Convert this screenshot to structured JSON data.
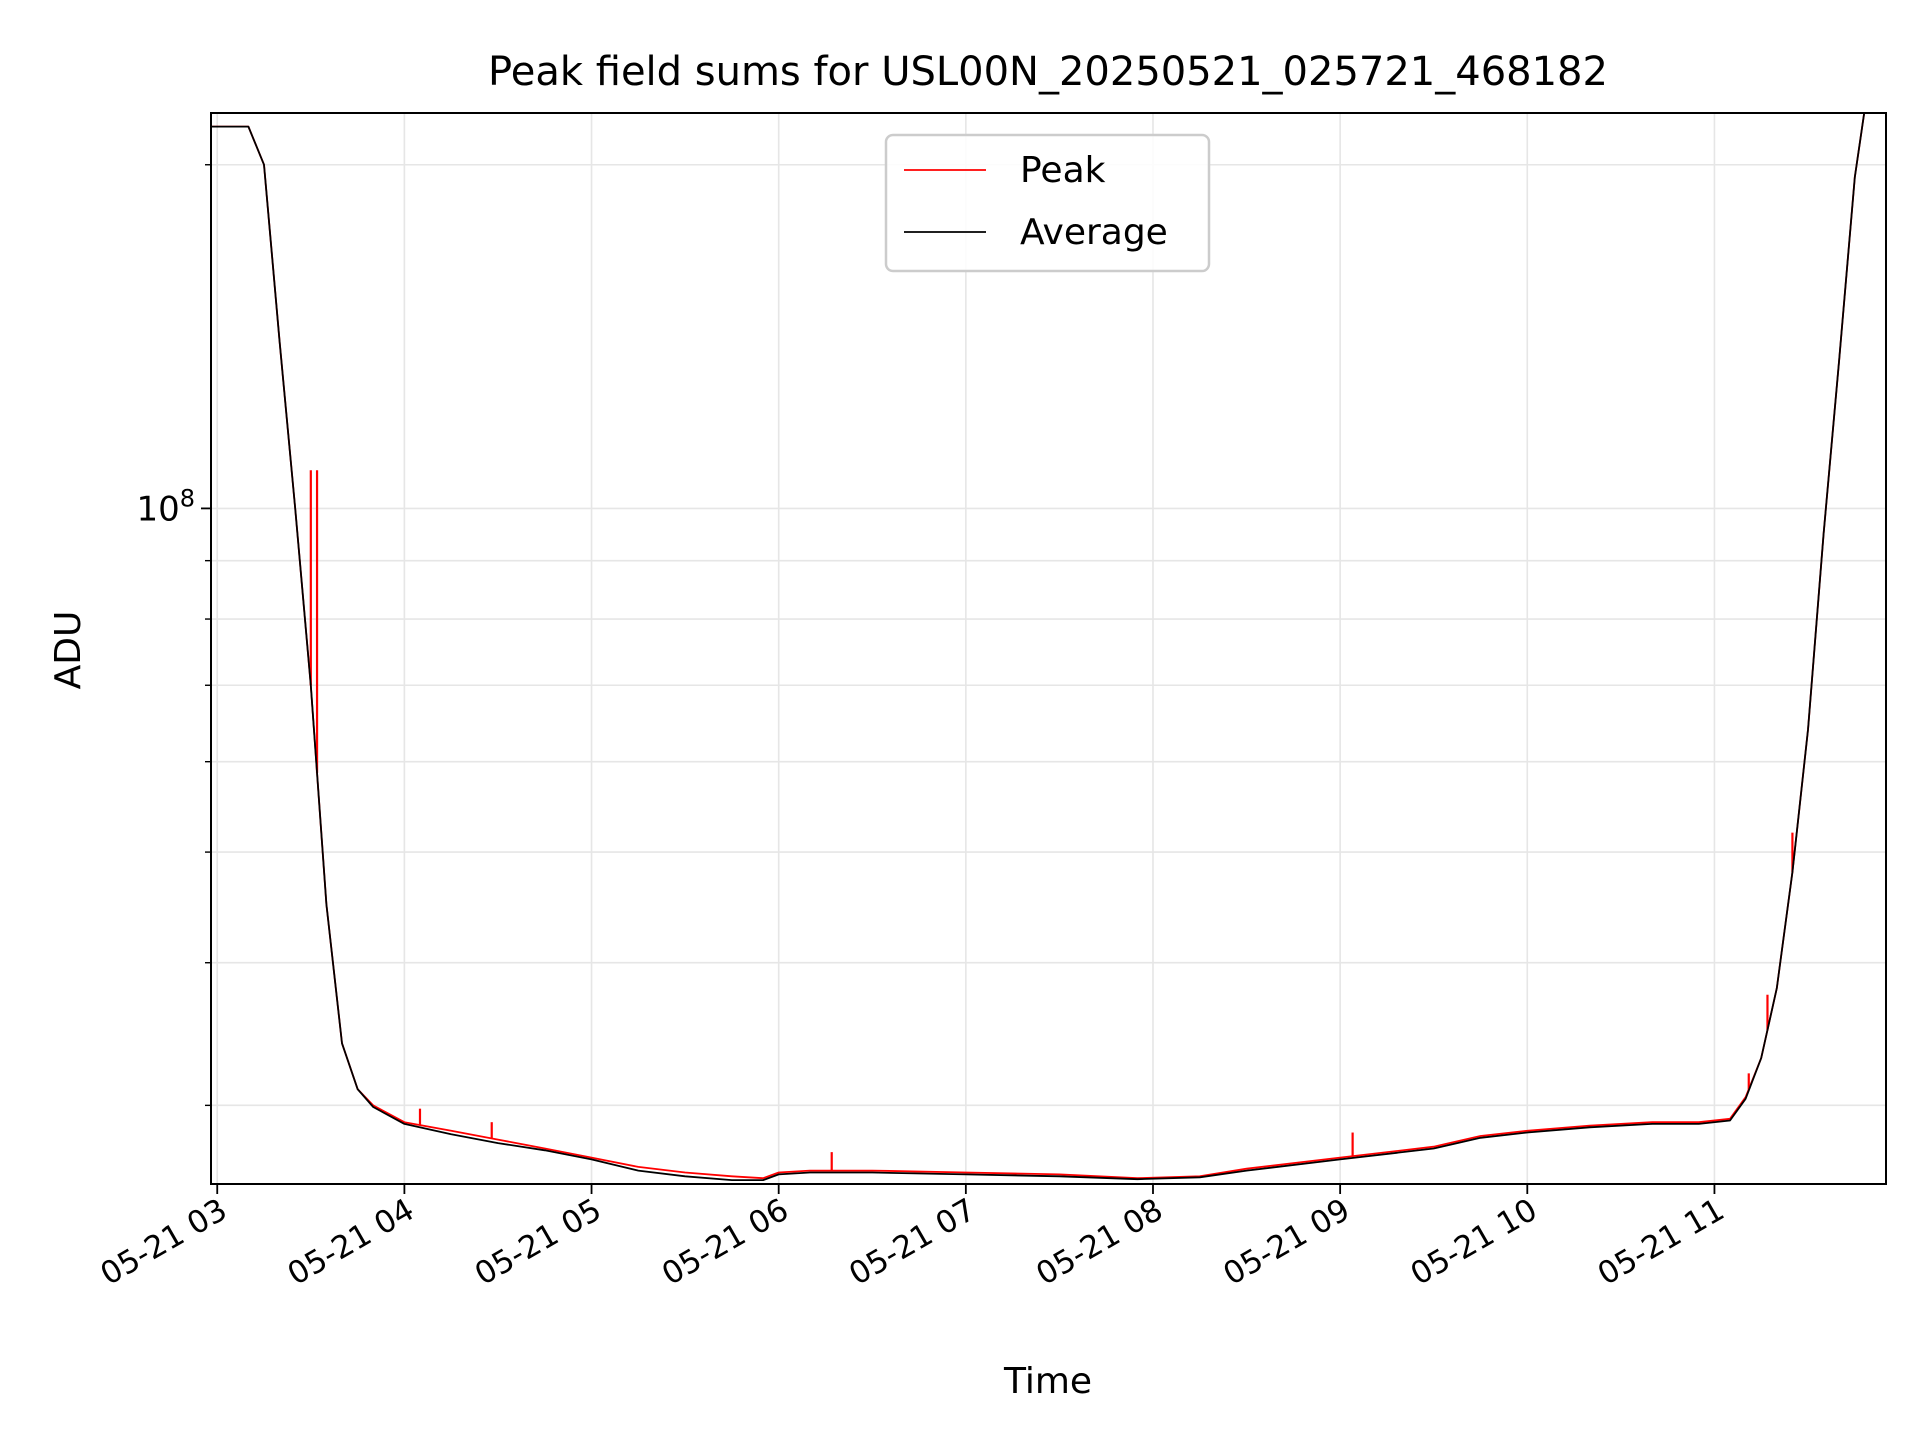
{
  "chart_data": {
    "type": "line",
    "title": "Peak field sums for USL00N_20250521_025721_468182",
    "xlabel": "Time",
    "ylabel": "ADU",
    "yscale": "log",
    "ylim": [
      25600000,
      222000000
    ],
    "xlim": [
      "2025-05-21 02:58",
      "2025-05-21 11:55"
    ],
    "x_ticks": [
      "2025-05-21 03:00",
      "2025-05-21 04:00",
      "2025-05-21 05:00",
      "2025-05-21 06:00",
      "2025-05-21 07:00",
      "2025-05-21 08:00",
      "2025-05-21 09:00",
      "2025-05-21 10:00",
      "2025-05-21 11:00"
    ],
    "x_tick_labels": [
      "05-21 03",
      "05-21 04",
      "05-21 05",
      "05-21 06",
      "05-21 07",
      "05-21 08",
      "05-21 09",
      "05-21 10",
      "05-21 11"
    ],
    "y_major_ticks": [
      100000000
    ],
    "y_major_tick_labels": [
      {
        "base": "10",
        "exp": "8"
      }
    ],
    "y_minor_ticks": [
      30000000,
      40000000,
      50000000,
      60000000,
      70000000,
      80000000,
      90000000,
      200000000
    ],
    "grid": true,
    "legend_position": "upper center",
    "colors": {
      "Peak": "#ff0000",
      "Average": "#000000"
    },
    "series": [
      {
        "name": "Peak",
        "x": [
          "2025-05-21 02:58",
          "2025-05-21 03:10",
          "2025-05-21 03:15",
          "2025-05-21 03:20",
          "2025-05-21 03:25",
          "2025-05-21 03:30",
          "2025-05-21 03:35",
          "2025-05-21 03:40",
          "2025-05-21 03:45",
          "2025-05-21 03:50",
          "2025-05-21 04:00",
          "2025-05-21 04:15",
          "2025-05-21 04:30",
          "2025-05-21 04:45",
          "2025-05-21 05:00",
          "2025-05-21 05:15",
          "2025-05-21 05:30",
          "2025-05-21 05:45",
          "2025-05-21 05:55",
          "2025-05-21 06:00",
          "2025-05-21 06:10",
          "2025-05-21 06:30",
          "2025-05-21 07:00",
          "2025-05-21 07:30",
          "2025-05-21 07:55",
          "2025-05-21 08:15",
          "2025-05-21 08:30",
          "2025-05-21 09:00",
          "2025-05-21 09:30",
          "2025-05-21 09:45",
          "2025-05-21 10:00",
          "2025-05-21 10:20",
          "2025-05-21 10:40",
          "2025-05-21 10:55",
          "2025-05-21 11:05",
          "2025-05-21 11:10",
          "2025-05-21 11:15",
          "2025-05-21 11:20",
          "2025-05-21 11:25",
          "2025-05-21 11:30",
          "2025-05-21 11:35",
          "2025-05-21 11:40",
          "2025-05-21 11:45",
          "2025-05-21 11:48"
        ],
        "y": [
          216000000,
          216000000,
          200000000,
          140000000,
          100000000,
          70000000,
          45000000,
          34000000,
          31000000,
          30000000,
          29000000,
          28500000,
          28000000,
          27500000,
          27000000,
          26500000,
          26200000,
          26000000,
          25900000,
          26200000,
          26300000,
          26300000,
          26200000,
          26100000,
          25900000,
          26000000,
          26400000,
          27000000,
          27600000,
          28200000,
          28500000,
          28800000,
          29000000,
          29000000,
          29200000,
          30500000,
          33000000,
          38000000,
          48000000,
          64000000,
          95000000,
          135000000,
          195000000,
          222000000
        ],
        "spikes": [
          {
            "x": "2025-05-21 03:30",
            "y": 108000000
          },
          {
            "x": "2025-05-21 03:32",
            "y": 108000000
          },
          {
            "x": "2025-05-21 04:05",
            "y": 29800000
          },
          {
            "x": "2025-05-21 04:28",
            "y": 29000000
          },
          {
            "x": "2025-05-21 06:17",
            "y": 27300000
          },
          {
            "x": "2025-05-21 09:04",
            "y": 28400000
          },
          {
            "x": "2025-05-21 11:11",
            "y": 32000000
          },
          {
            "x": "2025-05-21 11:17",
            "y": 37500000
          },
          {
            "x": "2025-05-21 11:25",
            "y": 52000000
          }
        ]
      },
      {
        "name": "Average",
        "x": [
          "2025-05-21 02:58",
          "2025-05-21 03:10",
          "2025-05-21 03:15",
          "2025-05-21 03:20",
          "2025-05-21 03:25",
          "2025-05-21 03:30",
          "2025-05-21 03:35",
          "2025-05-21 03:40",
          "2025-05-21 03:45",
          "2025-05-21 03:50",
          "2025-05-21 04:00",
          "2025-05-21 04:15",
          "2025-05-21 04:30",
          "2025-05-21 04:45",
          "2025-05-21 05:00",
          "2025-05-21 05:15",
          "2025-05-21 05:30",
          "2025-05-21 05:45",
          "2025-05-21 05:55",
          "2025-05-21 06:00",
          "2025-05-21 06:10",
          "2025-05-21 06:30",
          "2025-05-21 07:00",
          "2025-05-21 07:30",
          "2025-05-21 07:55",
          "2025-05-21 08:15",
          "2025-05-21 08:30",
          "2025-05-21 09:00",
          "2025-05-21 09:30",
          "2025-05-21 09:45",
          "2025-05-21 10:00",
          "2025-05-21 10:20",
          "2025-05-21 10:40",
          "2025-05-21 10:55",
          "2025-05-21 11:05",
          "2025-05-21 11:10",
          "2025-05-21 11:15",
          "2025-05-21 11:20",
          "2025-05-21 11:25",
          "2025-05-21 11:30",
          "2025-05-21 11:35",
          "2025-05-21 11:40",
          "2025-05-21 11:45",
          "2025-05-21 11:48"
        ],
        "y": [
          216000000,
          216000000,
          200000000,
          140000000,
          100000000,
          70000000,
          45000000,
          34000000,
          31000000,
          29900000,
          28900000,
          28300000,
          27800000,
          27400000,
          26900000,
          26300000,
          26000000,
          25800000,
          25800000,
          26100000,
          26200000,
          26200000,
          26100000,
          26000000,
          25850000,
          25950000,
          26300000,
          26900000,
          27500000,
          28100000,
          28400000,
          28700000,
          28900000,
          28900000,
          29100000,
          30400000,
          33000000,
          38000000,
          48000000,
          64000000,
          95000000,
          135000000,
          195000000,
          222000000
        ]
      }
    ]
  }
}
